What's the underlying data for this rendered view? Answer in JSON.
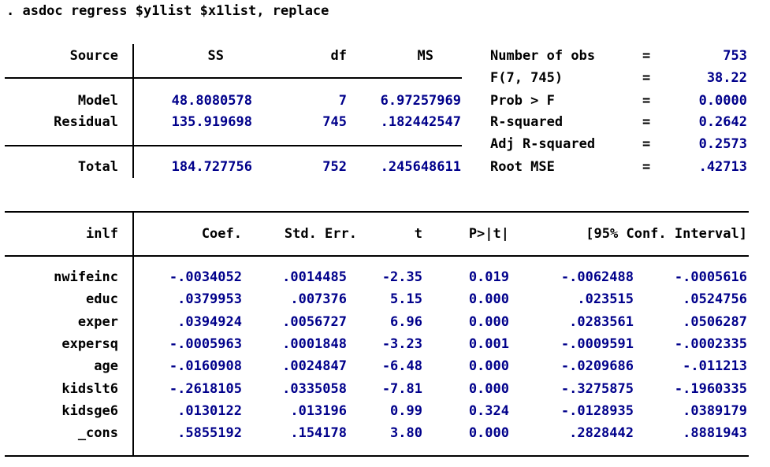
{
  "command": ". asdoc regress $y1list $x1list, replace",
  "anova": {
    "headers": [
      "Source",
      "SS",
      "df",
      "MS"
    ],
    "rows": [
      {
        "source": "Model",
        "ss": "48.8080578",
        "df": "7",
        "ms": "6.97257969"
      },
      {
        "source": "Residual",
        "ss": "135.919698",
        "df": "745",
        "ms": ".182442547"
      },
      {
        "source": "Total",
        "ss": "184.727756",
        "df": "752",
        "ms": ".245648611"
      }
    ]
  },
  "stats": [
    {
      "label": "Number of obs",
      "eq": "=",
      "value": "753"
    },
    {
      "label": "F(7, 745)",
      "eq": "=",
      "value": "38.22"
    },
    {
      "label": "Prob > F",
      "eq": "=",
      "value": "0.0000"
    },
    {
      "label": "R-squared",
      "eq": "=",
      "value": "0.2642"
    },
    {
      "label": "Adj R-squared",
      "eq": "=",
      "value": "0.2573"
    },
    {
      "label": "Root MSE",
      "eq": "=",
      "value": ".42713"
    }
  ],
  "coef": {
    "headers": [
      "inlf",
      "Coef.",
      "Std. Err.",
      "t",
      "P>|t|",
      "[95% Conf. Interval]"
    ],
    "rows": [
      {
        "var": "nwifeinc",
        "coef": "-.0034052",
        "se": ".0014485",
        "t": "-2.35",
        "p": "0.019",
        "lo": "-.0062488",
        "hi": "-.0005616"
      },
      {
        "var": "educ",
        "coef": ".0379953",
        "se": ".007376",
        "t": "5.15",
        "p": "0.000",
        "lo": ".023515",
        "hi": ".0524756"
      },
      {
        "var": "exper",
        "coef": ".0394924",
        "se": ".0056727",
        "t": "6.96",
        "p": "0.000",
        "lo": ".0283561",
        "hi": ".0506287"
      },
      {
        "var": "expersq",
        "coef": "-.0005963",
        "se": ".0001848",
        "t": "-3.23",
        "p": "0.001",
        "lo": "-.0009591",
        "hi": "-.0002335"
      },
      {
        "var": "age",
        "coef": "-.0160908",
        "se": ".0024847",
        "t": "-6.48",
        "p": "0.000",
        "lo": "-.0209686",
        "hi": "-.011213"
      },
      {
        "var": "kidslt6",
        "coef": "-.2618105",
        "se": ".0335058",
        "t": "-7.81",
        "p": "0.000",
        "lo": "-.3275875",
        "hi": "-.1960335"
      },
      {
        "var": "kidsge6",
        "coef": ".0130122",
        "se": ".013196",
        "t": "0.99",
        "p": "0.324",
        "lo": "-.0128935",
        "hi": ".0389179"
      },
      {
        "var": "_cons",
        "coef": ".5855192",
        "se": ".154178",
        "t": "3.80",
        "p": "0.000",
        "lo": ".2828442",
        "hi": ".8881943"
      }
    ]
  }
}
